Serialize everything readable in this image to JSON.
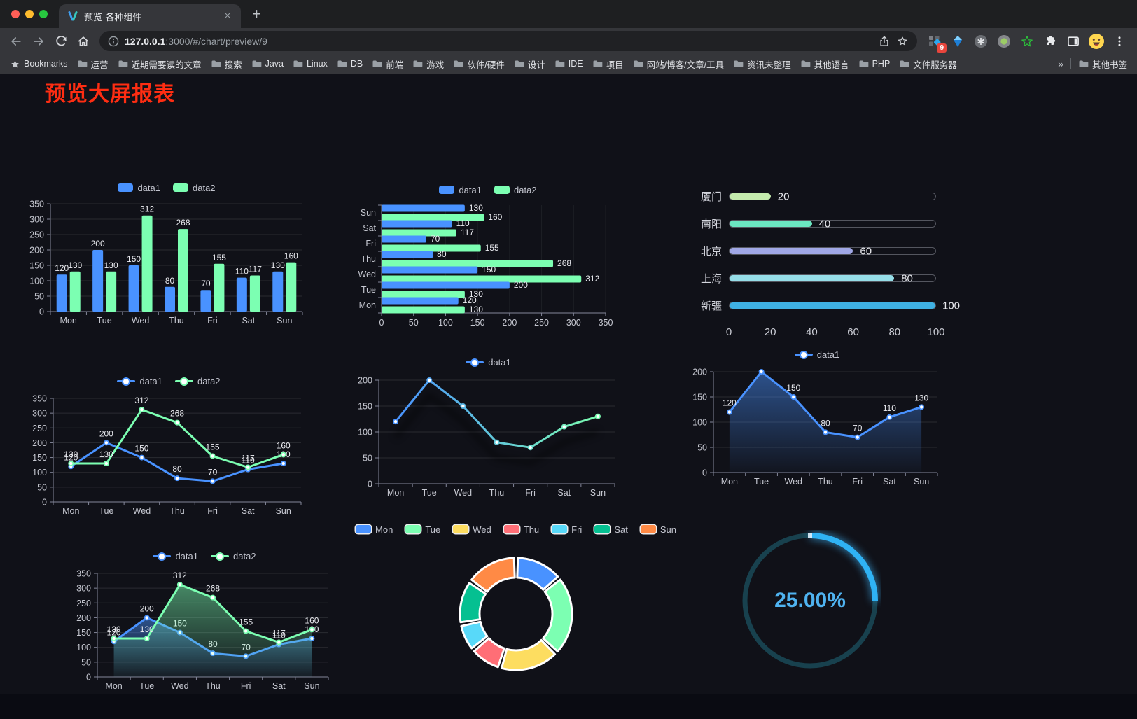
{
  "browser": {
    "tab_title": "预览-各种组件",
    "tab_close": "×",
    "new_tab": "+",
    "url": {
      "host": "127.0.0.1",
      "rest": ":3000/#/chart/preview/9"
    },
    "bookmarks_label": "Bookmarks",
    "bookmarks": [
      "运营",
      "近期需要读的文章",
      "搜索",
      "Java",
      "Linux",
      "DB",
      "前端",
      "游戏",
      "软件/硬件",
      "设计",
      "IDE",
      "项目",
      "网站/博客/文章/工具",
      "资讯未整理",
      "其他语言",
      "PHP",
      "文件服务器"
    ],
    "bookmarks_overflow": "»",
    "other_bookmarks": "其他书签",
    "extension_badge": "9"
  },
  "page": {
    "title": "预览大屏报表",
    "title_color": "#ff2d12",
    "background": "#101118"
  },
  "chart_data": [
    {
      "id": "bar-vertical",
      "type": "bar",
      "categories": [
        "Mon",
        "Tue",
        "Wed",
        "Thu",
        "Fri",
        "Sat",
        "Sun"
      ],
      "series": [
        {
          "name": "data1",
          "color": "#4992ff",
          "values": [
            120,
            200,
            150,
            80,
            70,
            110,
            130
          ]
        },
        {
          "name": "data2",
          "color": "#7cffb2",
          "values": [
            130,
            130,
            312,
            268,
            155,
            117,
            160
          ]
        }
      ],
      "ylim": [
        0,
        350
      ],
      "ytick": 50,
      "legend_position": "top",
      "grid": true,
      "value_labels": true
    },
    {
      "id": "bar-horizontal",
      "type": "bar-horizontal",
      "categories": [
        "Mon",
        "Tue",
        "Wed",
        "Thu",
        "Fri",
        "Sat",
        "Sun"
      ],
      "category_axis_top_to_bottom": [
        "Sun",
        "Sat",
        "Fri",
        "Thu",
        "Wed",
        "Tue",
        "Mon"
      ],
      "series": [
        {
          "name": "data1",
          "color": "#4992ff",
          "values": [
            120,
            200,
            150,
            80,
            70,
            110,
            130
          ]
        },
        {
          "name": "data2",
          "color": "#7cffb2",
          "values": [
            130,
            130,
            312,
            268,
            155,
            117,
            160
          ]
        }
      ],
      "xlim": [
        0,
        350
      ],
      "xtick": 50,
      "legend_position": "top",
      "grid": true,
      "value_labels": true
    },
    {
      "id": "progress-bars",
      "type": "bar",
      "orientation": "horizontal-progress",
      "items": [
        {
          "label": "厦门",
          "value": 20,
          "color": "#c4ebad"
        },
        {
          "label": "南阳",
          "value": 40,
          "color": "#6be6c1"
        },
        {
          "label": "北京",
          "value": 60,
          "color": "#a0a7e6"
        },
        {
          "label": "上海",
          "value": 80,
          "color": "#96dee8"
        },
        {
          "label": "新疆",
          "value": 100,
          "color": "#3fb1e3"
        }
      ],
      "xlim": [
        0,
        100
      ],
      "xticks": [
        0,
        20,
        40,
        60,
        80,
        100
      ]
    },
    {
      "id": "line-dual",
      "type": "line",
      "categories": [
        "Mon",
        "Tue",
        "Wed",
        "Thu",
        "Fri",
        "Sat",
        "Sun"
      ],
      "series": [
        {
          "name": "data1",
          "color": "#4992ff",
          "values": [
            120,
            200,
            150,
            80,
            70,
            110,
            130
          ]
        },
        {
          "name": "data2",
          "color": "#7cffb2",
          "values": [
            130,
            130,
            312,
            268,
            155,
            117,
            160
          ]
        }
      ],
      "ylim": [
        0,
        350
      ],
      "ytick": 50,
      "legend_position": "top",
      "grid": true,
      "value_labels": true
    },
    {
      "id": "line-gradient",
      "type": "line",
      "categories": [
        "Mon",
        "Tue",
        "Wed",
        "Thu",
        "Fri",
        "Sat",
        "Sun"
      ],
      "series": [
        {
          "name": "data1",
          "color": "#4992ff",
          "color_gradient": [
            "#4992ff",
            "#7cffb2"
          ],
          "values": [
            120,
            200,
            150,
            80,
            70,
            110,
            130
          ],
          "shadow": true
        }
      ],
      "ylim": [
        0,
        200
      ],
      "ytick": 50,
      "legend_position": "top",
      "grid": true,
      "value_labels": false
    },
    {
      "id": "area-single",
      "type": "area",
      "categories": [
        "Mon",
        "Tue",
        "Wed",
        "Thu",
        "Fri",
        "Sat",
        "Sun"
      ],
      "series": [
        {
          "name": "data1",
          "color": "#4992ff",
          "values": [
            120,
            200,
            150,
            80,
            70,
            110,
            130
          ],
          "area": true
        }
      ],
      "ylim": [
        0,
        200
      ],
      "ytick": 50,
      "legend_position": "top",
      "grid": true,
      "value_labels": true
    },
    {
      "id": "area-dual",
      "type": "area",
      "categories": [
        "Mon",
        "Tue",
        "Wed",
        "Thu",
        "Fri",
        "Sat",
        "Sun"
      ],
      "series": [
        {
          "name": "data1",
          "color": "#4992ff",
          "values": [
            120,
            200,
            150,
            80,
            70,
            110,
            130
          ],
          "area": true
        },
        {
          "name": "data2",
          "color": "#7cffb2",
          "values": [
            130,
            130,
            312,
            268,
            155,
            117,
            160
          ],
          "area": true
        }
      ],
      "ylim": [
        0,
        350
      ],
      "ytick": 50,
      "legend_position": "top",
      "grid": true,
      "value_labels": true
    },
    {
      "id": "donut",
      "type": "pie",
      "labels": [
        "Mon",
        "Tue",
        "Wed",
        "Thu",
        "Fri",
        "Sat",
        "Sun"
      ],
      "values": [
        120,
        200,
        150,
        80,
        70,
        110,
        130
      ],
      "colors": [
        "#4992ff",
        "#7cffb2",
        "#fddd60",
        "#ff6e76",
        "#58d9f9",
        "#05c091",
        "#ff8a45"
      ],
      "donut": true,
      "legend_position": "top"
    },
    {
      "id": "gauge",
      "type": "gauge",
      "value": 25,
      "max": 100,
      "value_label": "25.00%",
      "color": "#2fb2f4",
      "track_color": "#18414e",
      "text_color": "#4fb3f0"
    }
  ]
}
